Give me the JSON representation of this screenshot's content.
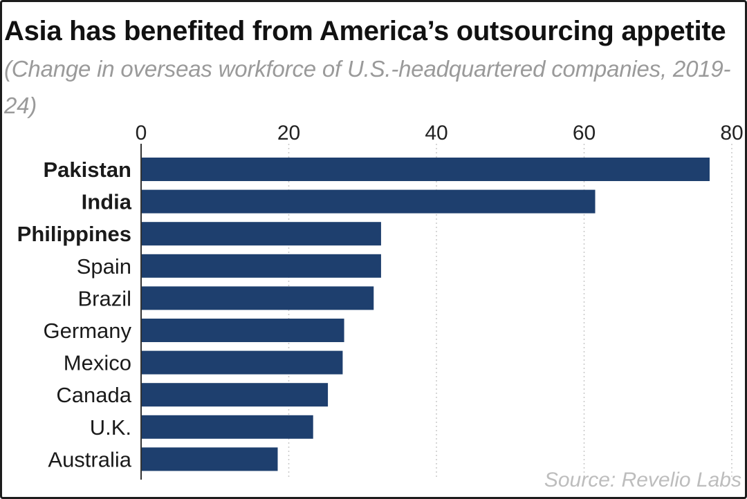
{
  "title": {
    "main": "Asia has benefited from America’s outsourcing appetite",
    "subtitle": "(Change in overseas workforce of U.S.-headquartered companies, 2019-24)"
  },
  "source": "Source: Revelio Labs",
  "chart_data": {
    "type": "bar",
    "orientation": "horizontal",
    "title": "Asia has benefited from America’s outsourcing appetite",
    "subtitle": "(Change in overseas workforce of U.S.-headquartered companies, 2019-24)",
    "xlabel": "",
    "ylabel": "",
    "xlim": [
      0,
      80
    ],
    "xticks": [
      0,
      20,
      40,
      60,
      80
    ],
    "tick_labels": [
      "0",
      "20",
      "40",
      "60",
      "80"
    ],
    "grid": true,
    "categories": [
      "Pakistan",
      "India",
      "Philippines",
      "Spain",
      "Brazil",
      "Germany",
      "Mexico",
      "Canada",
      "U.K.",
      "Australia"
    ],
    "highlighted": [
      "Pakistan",
      "India",
      "Philippines"
    ],
    "values": [
      77,
      61.5,
      32.5,
      32.5,
      31.5,
      27.5,
      27.3,
      25.3,
      23.3,
      18.5
    ],
    "bar_color": "#1e3f6e",
    "grid_color": "#c8c8c8"
  }
}
